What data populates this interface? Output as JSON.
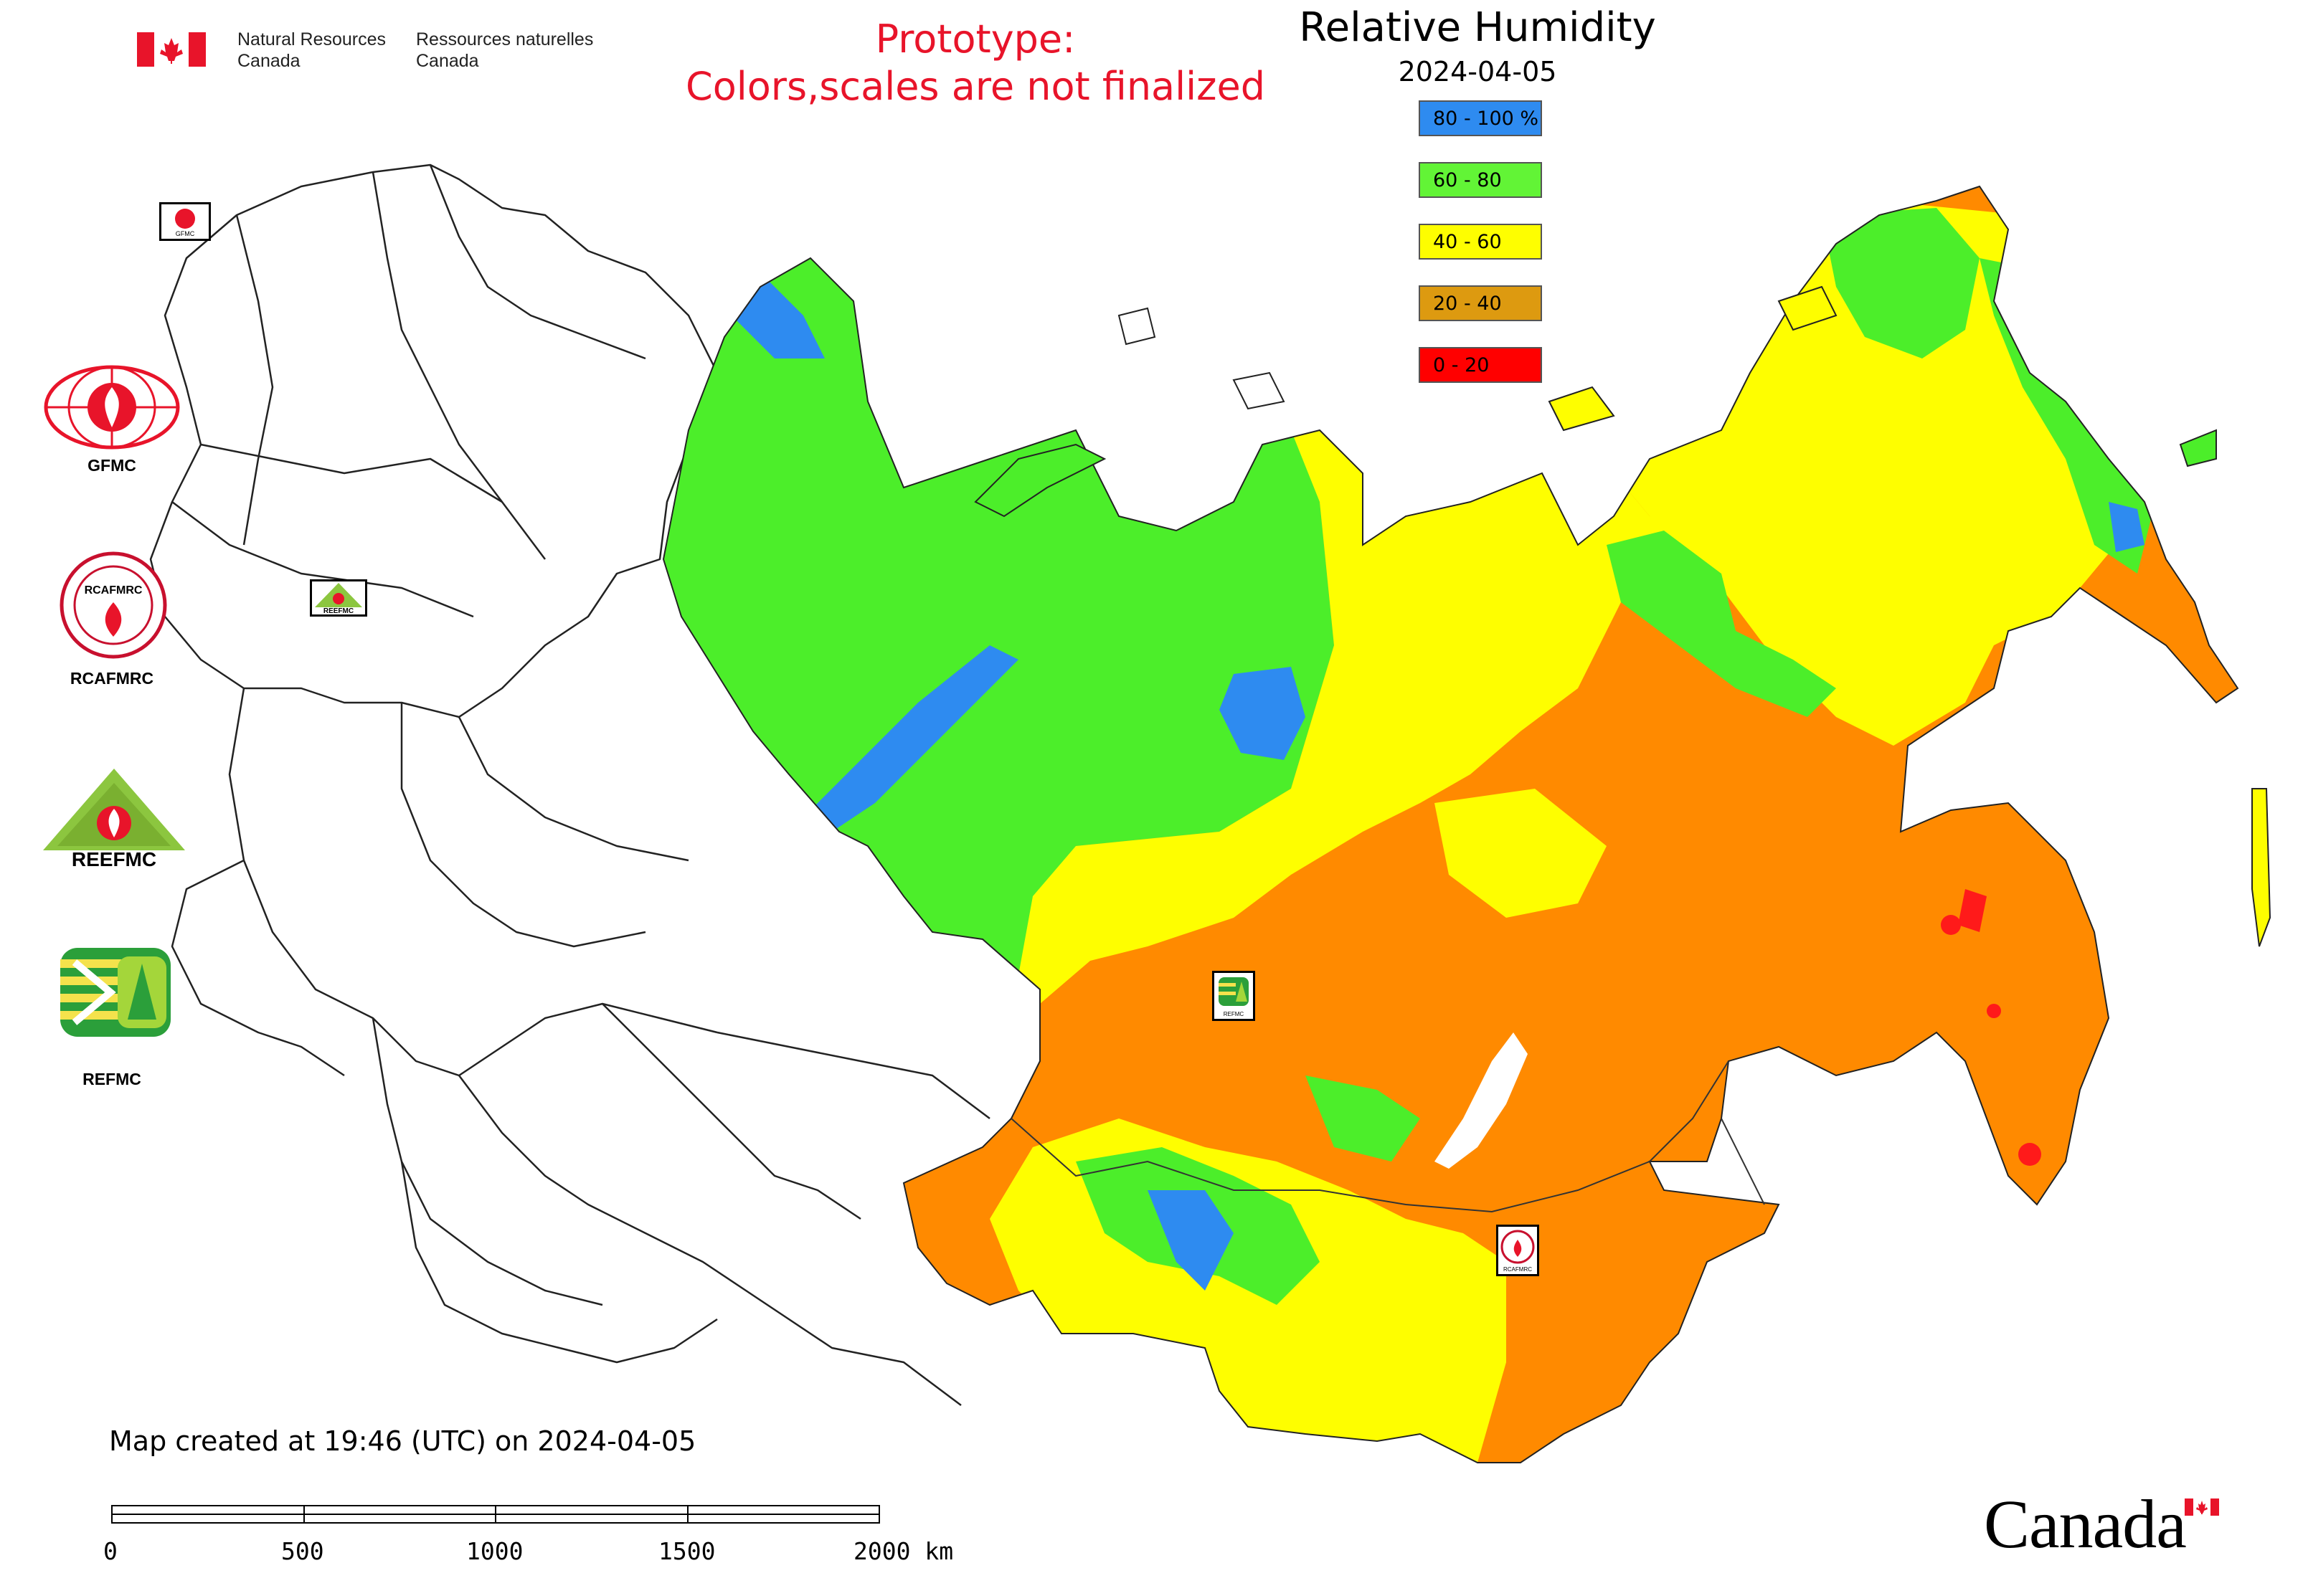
{
  "header": {
    "agency_en_line1": "Natural Resources",
    "agency_en_line2": "Canada",
    "agency_fr_line1": "Ressources naturelles",
    "agency_fr_line2": "Canada"
  },
  "notice": {
    "line1": "Prototype:",
    "line2": "Colors,scales are not finalized",
    "color": "#e8142a"
  },
  "map": {
    "title": "Relative Humidity",
    "date": "2024-04-05",
    "created_text": "Map created at 19:46 (UTC) on 2024-04-05"
  },
  "legend": {
    "items": [
      {
        "label": "80 - 100 %",
        "color": "#2e8bf0"
      },
      {
        "label": "60 - 80",
        "color": "#62f436"
      },
      {
        "label": "40 - 60",
        "color": "#fefe00"
      },
      {
        "label": "20 - 40",
        "color": "#dd9a10"
      },
      {
        "label": "0 - 20",
        "color": "#ff0000"
      }
    ]
  },
  "colors": {
    "very_humid": "#2e8bf0",
    "humid": "#4cee2a",
    "moderate": "#fefe00",
    "dry": "#ff8a00",
    "very_dry": "#ff1a1a"
  },
  "organizations": [
    {
      "label": "GFMC",
      "icon": "gfmc-logo"
    },
    {
      "label": "RCAFMRC",
      "icon": "rcafmrc-logo"
    },
    {
      "label": "",
      "icon": "reefmc-logo",
      "wordmark": "REEFMC"
    },
    {
      "label": "REFMC",
      "icon": "refmc-logo"
    }
  ],
  "map_markers": {
    "gfmc": "GFMC",
    "reefmc": "REEFMC",
    "refmc": "REFMC",
    "rcafmrc": "RCAFMRC"
  },
  "scale_bar": {
    "ticks": [
      "0",
      "500",
      "1000",
      "1500",
      "2000 km"
    ]
  },
  "footer": {
    "wordmark": "Canada"
  }
}
